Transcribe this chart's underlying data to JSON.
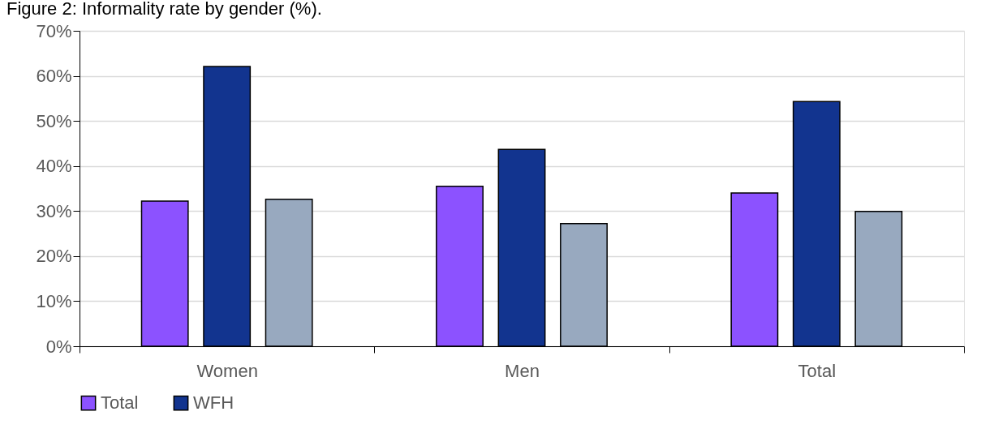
{
  "chart_data": {
    "type": "bar",
    "title": "Figure 2: Informality rate by gender (%).",
    "categories": [
      "Women",
      "Men",
      "Total"
    ],
    "series": [
      {
        "name": "Total",
        "color": "#8c52ff",
        "values": [
          32.2,
          35.5,
          34.0
        ]
      },
      {
        "name": "WFH",
        "color": "#12348f",
        "values": [
          62.1,
          43.7,
          54.3
        ]
      },
      {
        "color": "#98a9bf",
        "values": [
          32.6,
          27.2,
          29.9
        ]
      }
    ],
    "ylim": [
      0,
      70
    ],
    "yticks": [
      {
        "value": 0,
        "label": "0%"
      },
      {
        "value": 10,
        "label": "10%"
      },
      {
        "value": 20,
        "label": "20%"
      },
      {
        "value": 30,
        "label": "30%"
      },
      {
        "value": 40,
        "label": "40%"
      },
      {
        "value": 50,
        "label": "50%"
      },
      {
        "value": 60,
        "label": "60%"
      },
      {
        "value": 70,
        "label": "70%"
      }
    ],
    "grid": "y",
    "legend": "bottom"
  }
}
